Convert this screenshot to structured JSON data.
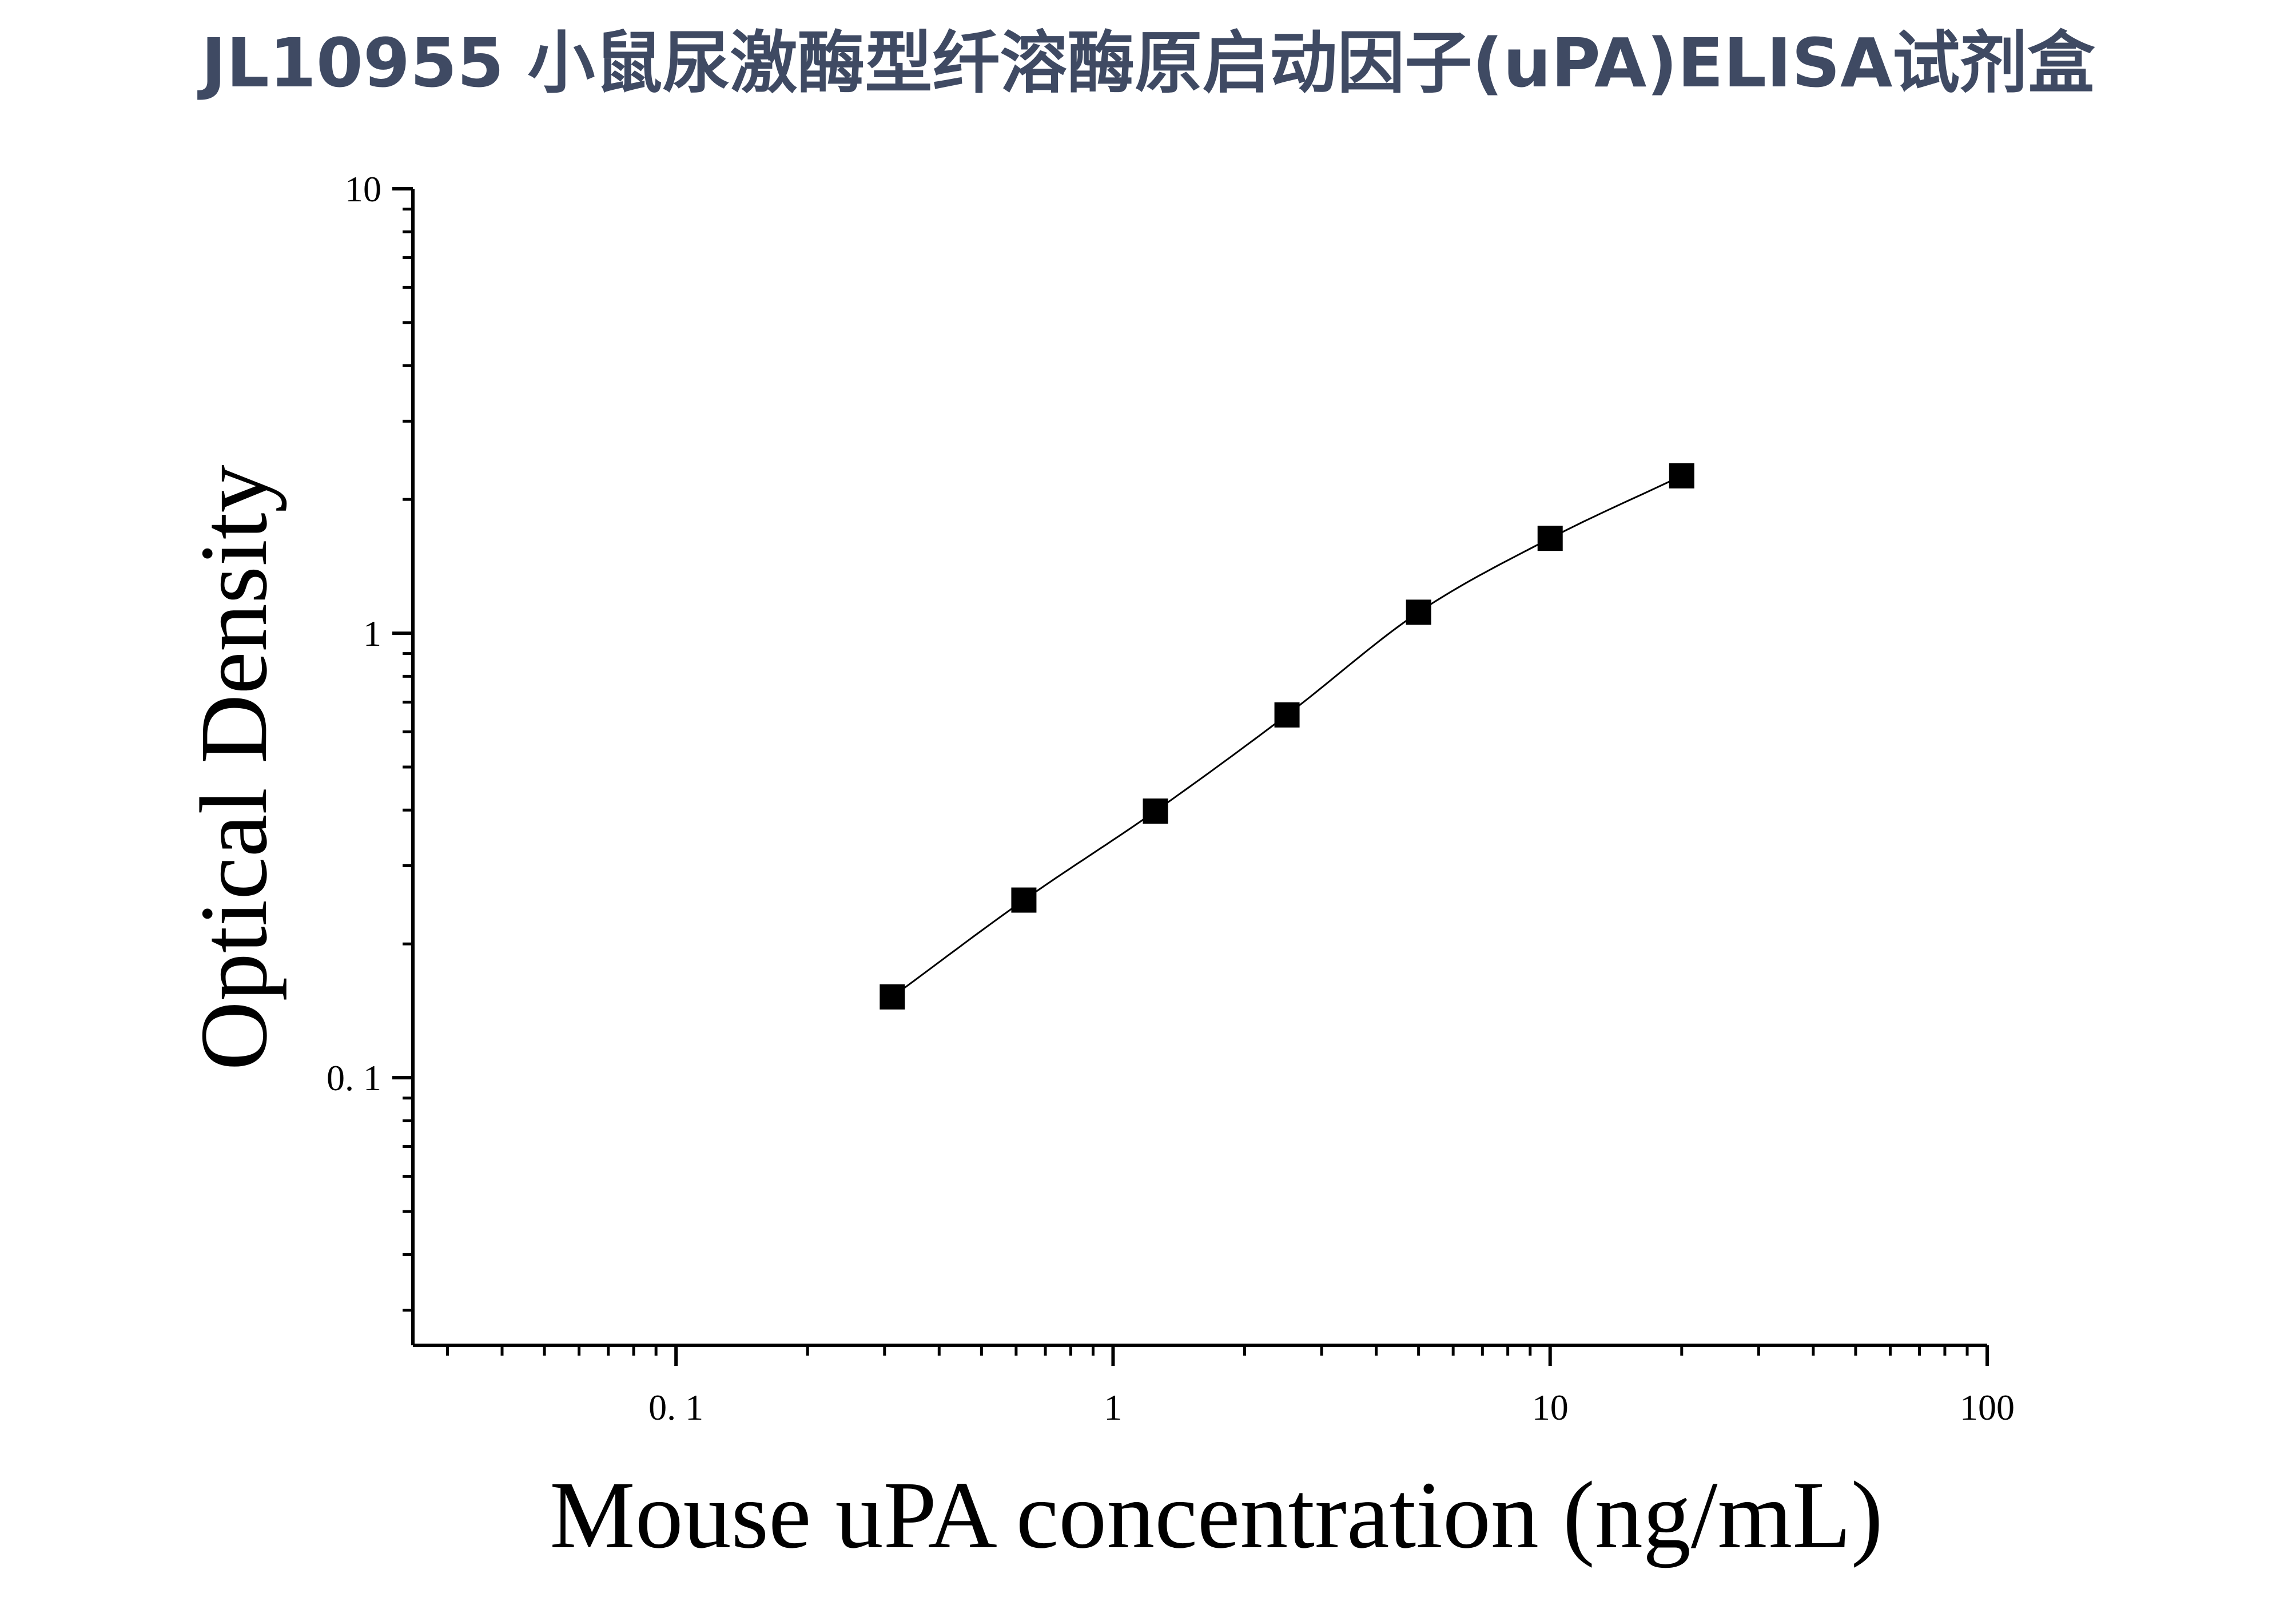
{
  "chart_data": {
    "type": "scatter",
    "title": "JL10955 小鼠尿激酶型纤溶酶原启动因子(uPA)ELISA试剂盒",
    "title_color": "#3f4a63",
    "xlabel": "Mouse uPA concentration (ng/mL)",
    "ylabel": "Optical Density",
    "x_scale": "log",
    "y_scale": "log",
    "xlim": [
      0.025,
      100
    ],
    "ylim": [
      0.025,
      10
    ],
    "x_ticks": [
      0.1,
      1,
      10,
      100
    ],
    "x_tick_labels": [
      "0. 1",
      "1",
      "10",
      "100"
    ],
    "y_ticks": [
      0.1,
      1,
      10
    ],
    "y_tick_labels": [
      "0. 1",
      "1",
      "10"
    ],
    "grid": false,
    "fit_curve": true,
    "marker": "square",
    "marker_color": "#000000",
    "series": [
      {
        "x": [
          0.3125,
          0.625,
          1.25,
          2.5,
          5,
          10,
          20
        ],
        "y": [
          0.152,
          0.251,
          0.398,
          0.655,
          1.115,
          1.635,
          2.26
        ]
      }
    ]
  }
}
